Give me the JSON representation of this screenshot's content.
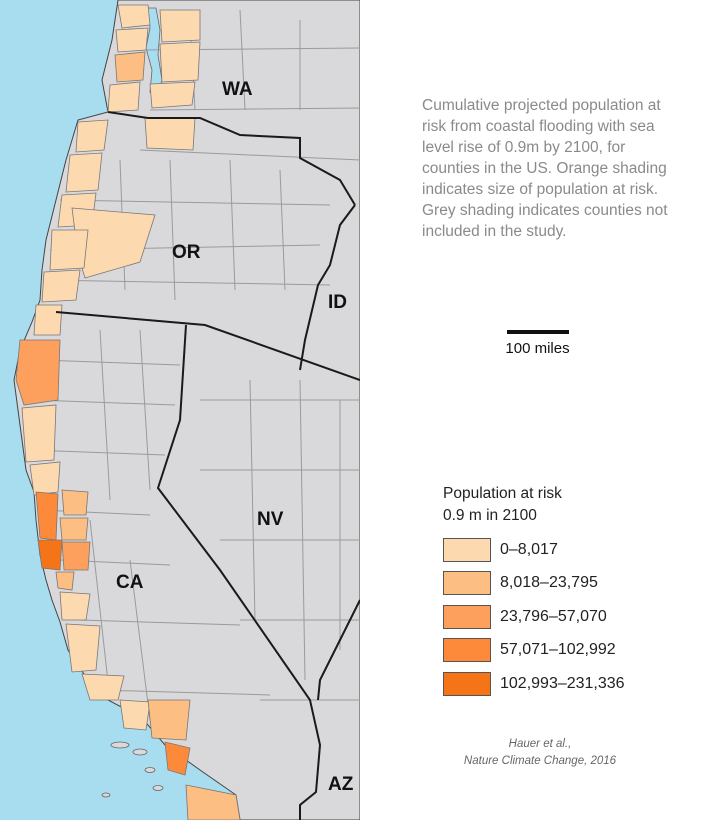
{
  "caption": "Cumulative projected population at risk from coastal flooding with sea level rise of 0.9m by 2100, for counties in the US. Orange shading indicates size of population at risk. Grey shading indicates counties not included in the study.",
  "scale_label": "100 miles",
  "legend": {
    "title_line1": "Population at risk",
    "title_line2": "0.9 m in 2100",
    "items": [
      {
        "label": "0–8,017",
        "color": "#fdd9b0"
      },
      {
        "label": "8,018–23,795",
        "color": "#fdbe84"
      },
      {
        "label": "23,796–57,070",
        "color": "#fda05d"
      },
      {
        "label": "57,071–102,992",
        "color": "#fc8a3a"
      },
      {
        "label": "102,993–231,336",
        "color": "#f57418"
      }
    ]
  },
  "states": {
    "wa": "WA",
    "or": "OR",
    "id": "ID",
    "nv": "NV",
    "ca": "CA",
    "az": "AZ"
  },
  "credit_line1": "Hauer et al.,",
  "credit_line2": "Nature Climate Change, 2016",
  "colors": {
    "ocean": "#a8dcef",
    "land": "#d9d9dc",
    "county_border": "#9a9a9a",
    "state_border": "#1a1a1a"
  }
}
